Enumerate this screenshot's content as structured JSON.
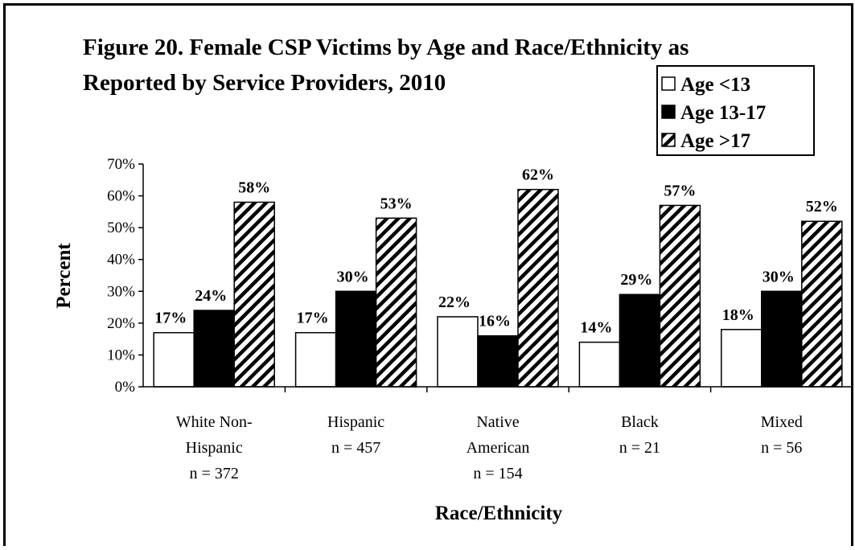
{
  "chart_data": {
    "type": "bar",
    "title_line1": "Figure 20.  Female CSP Victims by Age and Race/Ethnicity as",
    "title_line2": "Reported by Service Providers, 2010",
    "xlabel": "Race/Ethnicity",
    "ylabel": "Percent",
    "ylim": [
      0,
      70
    ],
    "yticks": [
      "0%",
      "10%",
      "20%",
      "30%",
      "40%",
      "50%",
      "60%",
      "70%"
    ],
    "categories": [
      [
        "White Non-",
        "Hispanic",
        "n = 372"
      ],
      [
        "Hispanic",
        "n = 457"
      ],
      [
        "Native",
        "American",
        "n = 154"
      ],
      [
        "Black",
        "n = 21"
      ],
      [
        "Mixed",
        "n = 56"
      ]
    ],
    "series": [
      {
        "name": "Age <13",
        "values": [
          17,
          17,
          22,
          14,
          18
        ],
        "labels": [
          "17%",
          "17%",
          "22%",
          "14%",
          "18%"
        ]
      },
      {
        "name": "Age 13-17",
        "values": [
          24,
          30,
          16,
          29,
          30
        ],
        "labels": [
          "24%",
          "30%",
          "16%",
          "29%",
          "30%"
        ]
      },
      {
        "name": "Age >17",
        "values": [
          58,
          53,
          62,
          57,
          52
        ],
        "labels": [
          "58%",
          "53%",
          "62%",
          "57%",
          "52%"
        ]
      }
    ],
    "legend_position": "top-right",
    "grid": false
  }
}
